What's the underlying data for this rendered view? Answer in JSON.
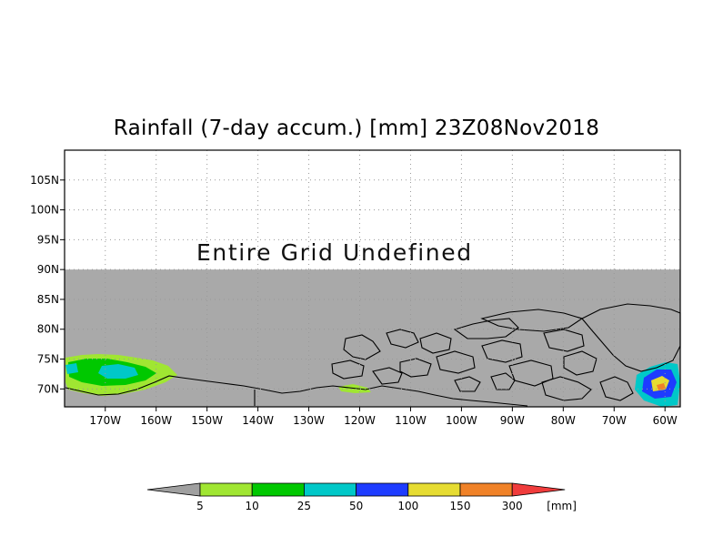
{
  "title": "Rainfall (7-day accum.) [mm] 23Z08Nov2018",
  "undefined_notice": "Entire Grid Undefined",
  "map": {
    "projection": "lat-lon",
    "lon_range": [
      -178,
      -57
    ],
    "lat_range": [
      67,
      110
    ],
    "undefined_above_lat": 90,
    "lat_ticks": [
      {
        "value": 105,
        "label": "105N"
      },
      {
        "value": 100,
        "label": "100N"
      },
      {
        "value": 95,
        "label": "95N"
      },
      {
        "value": 90,
        "label": "90N"
      },
      {
        "value": 85,
        "label": "85N"
      },
      {
        "value": 80,
        "label": "80N"
      },
      {
        "value": 75,
        "label": "75N"
      },
      {
        "value": 70,
        "label": "70N"
      }
    ],
    "lon_ticks": [
      {
        "value": -170,
        "label": "170W"
      },
      {
        "value": -160,
        "label": "160W"
      },
      {
        "value": -150,
        "label": "150W"
      },
      {
        "value": -140,
        "label": "140W"
      },
      {
        "value": -130,
        "label": "130W"
      },
      {
        "value": -120,
        "label": "120W"
      },
      {
        "value": -110,
        "label": "110W"
      },
      {
        "value": -100,
        "label": "100W"
      },
      {
        "value": -90,
        "label": "90W"
      },
      {
        "value": -80,
        "label": "80W"
      },
      {
        "value": -70,
        "label": "70W"
      },
      {
        "value": -60,
        "label": "60W"
      }
    ],
    "grid": true,
    "colors": {
      "background_undefined": "#a9a9a9",
      "coastline": "#000000",
      "grid": "#999999"
    }
  },
  "colorbar": {
    "unit": "[mm]",
    "below_color": "#a0a0a0",
    "above_color": "#f03c3c",
    "bins": [
      {
        "color": "#a0e632"
      },
      {
        "color": "#00c800"
      },
      {
        "color": "#00c8c8"
      },
      {
        "color": "#1e3cff"
      },
      {
        "color": "#e6dc32"
      },
      {
        "color": "#f08228"
      }
    ],
    "labels": [
      "5",
      "10",
      "25",
      "50",
      "100",
      "150",
      "300"
    ]
  }
}
